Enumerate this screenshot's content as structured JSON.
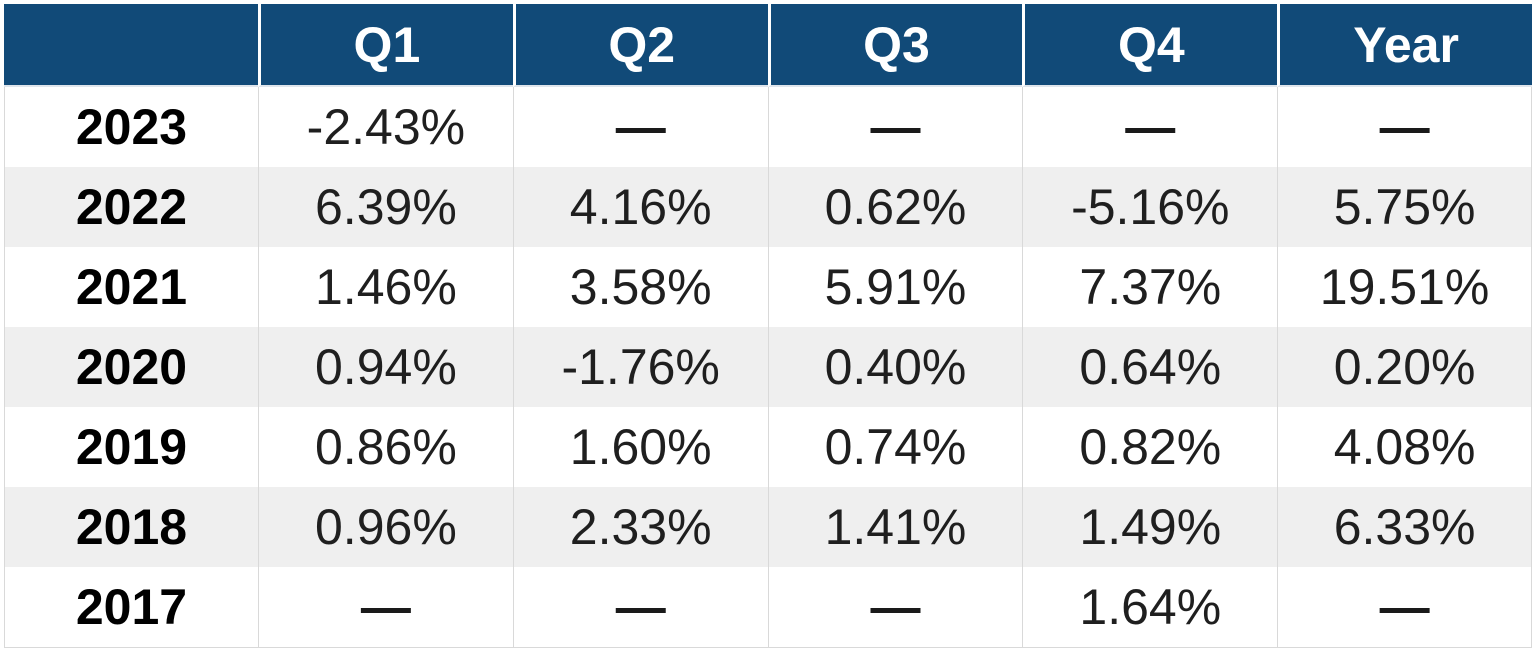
{
  "table": {
    "header": [
      "",
      "Q1",
      "Q2",
      "Q3",
      "Q4",
      "Year"
    ],
    "rows": [
      {
        "year": "2023",
        "values": [
          "-2.43%",
          "—",
          "—",
          "—",
          "—"
        ]
      },
      {
        "year": "2022",
        "values": [
          "6.39%",
          "4.16%",
          "0.62%",
          "-5.16%",
          "5.75%"
        ]
      },
      {
        "year": "2021",
        "values": [
          "1.46%",
          "3.58%",
          "5.91%",
          "7.37%",
          "19.51%"
        ]
      },
      {
        "year": "2020",
        "values": [
          "0.94%",
          "-1.76%",
          "0.40%",
          "0.64%",
          "0.20%"
        ]
      },
      {
        "year": "2019",
        "values": [
          "0.86%",
          "1.60%",
          "0.74%",
          "0.82%",
          "4.08%"
        ]
      },
      {
        "year": "2018",
        "values": [
          "0.96%",
          "2.33%",
          "1.41%",
          "1.49%",
          "6.33%"
        ]
      },
      {
        "year": "2017",
        "values": [
          "—",
          "—",
          "—",
          "1.64%",
          "—"
        ]
      }
    ],
    "missing_marker": "—",
    "colors": {
      "header_bg": "#114a78",
      "header_text": "#ffffff",
      "stripe_bg": "#efefef",
      "row_bg": "#ffffff",
      "value_text": "#1f1f1f",
      "year_text": "#000000",
      "grid_border": "#d9d9d9",
      "header_separator": "#ffffff"
    }
  },
  "chart_data": {
    "type": "table",
    "title": "",
    "columns": [
      "Q1",
      "Q2",
      "Q3",
      "Q4",
      "Year"
    ],
    "row_labels": [
      "2023",
      "2022",
      "2021",
      "2020",
      "2019",
      "2018",
      "2017"
    ],
    "units": "percent",
    "missing_marker": "—",
    "values_pct": [
      [
        -2.43,
        null,
        null,
        null,
        null
      ],
      [
        6.39,
        4.16,
        0.62,
        -5.16,
        5.75
      ],
      [
        1.46,
        3.58,
        5.91,
        7.37,
        19.51
      ],
      [
        0.94,
        -1.76,
        0.4,
        0.64,
        0.2
      ],
      [
        0.86,
        1.6,
        0.74,
        0.82,
        4.08
      ],
      [
        0.96,
        2.33,
        1.41,
        1.49,
        6.33
      ],
      [
        null,
        null,
        null,
        1.64,
        null
      ]
    ]
  }
}
